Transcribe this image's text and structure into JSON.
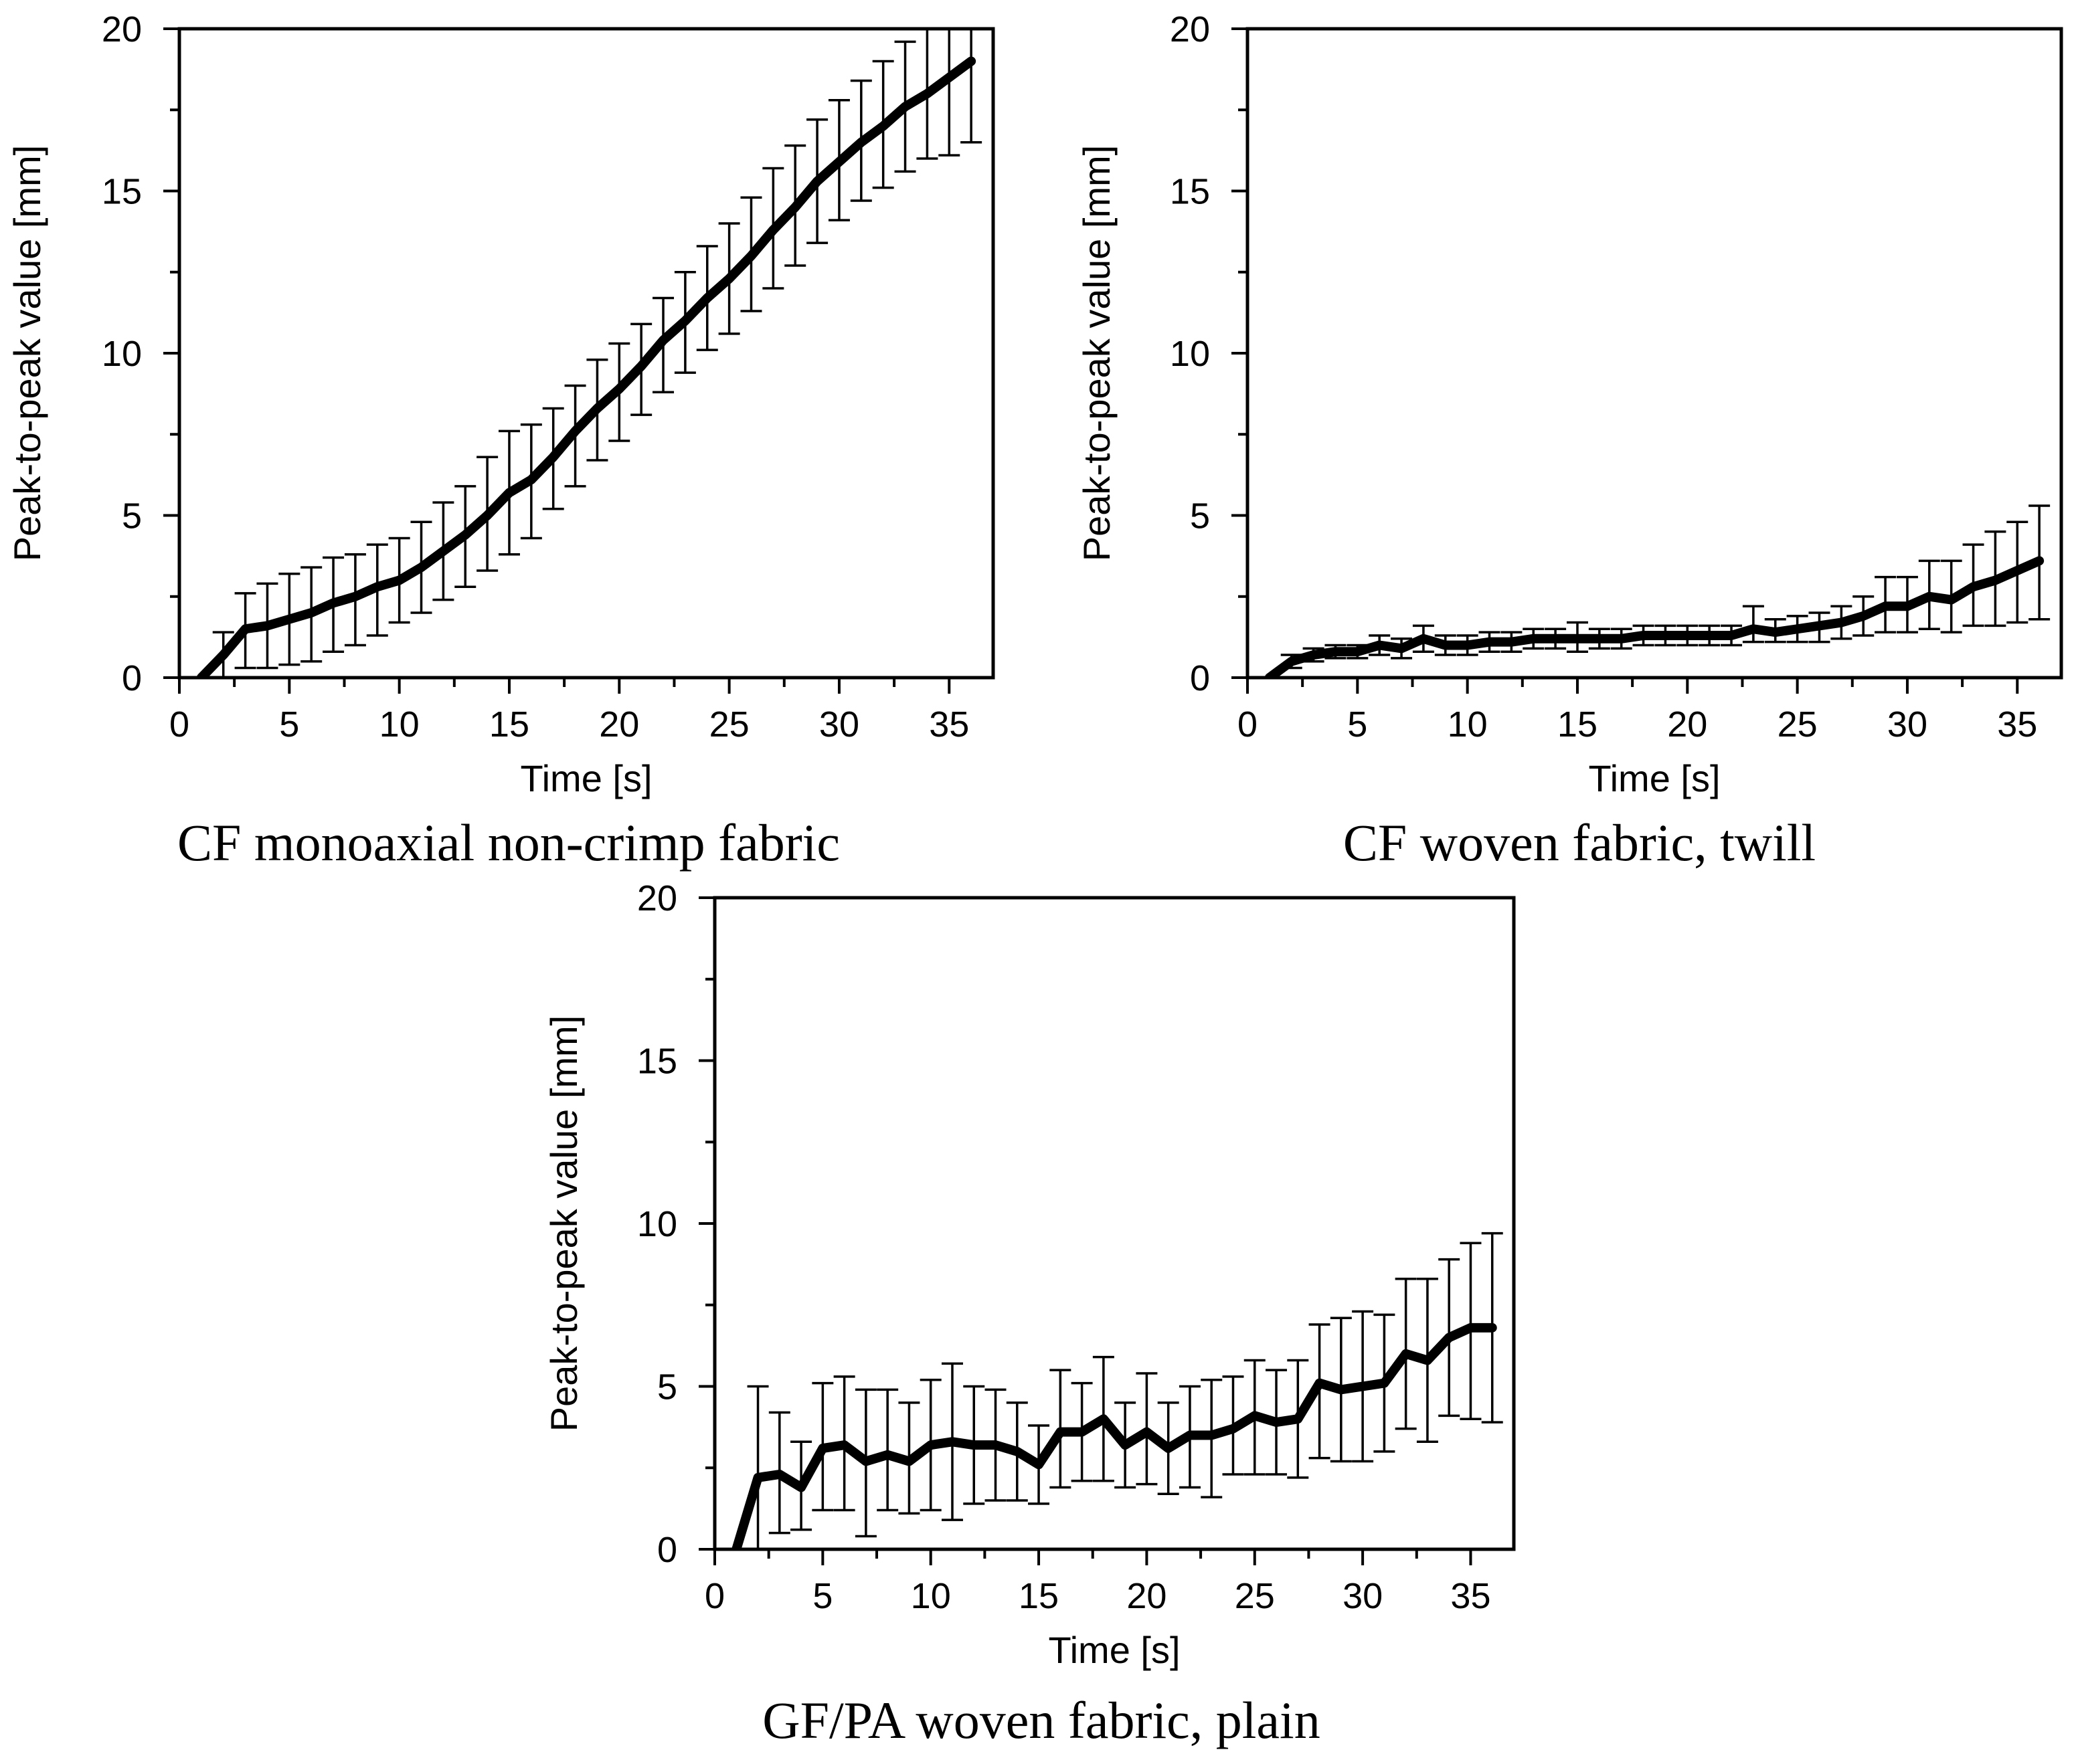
{
  "chart_data": [
    {
      "type": "line",
      "caption": "CF monoaxial non-crimp fabric",
      "xlabel": "Time [s]",
      "ylabel": "Peak-to-peak value [mm]",
      "xlim": [
        0,
        37
      ],
      "ylim": [
        0,
        20
      ],
      "xticks": [
        0,
        5,
        10,
        15,
        20,
        25,
        30,
        35
      ],
      "yticks": [
        0,
        5,
        10,
        15,
        20
      ],
      "grid": false,
      "series": [
        {
          "name": "CF monoaxial non-crimp fabric",
          "x": [
            1,
            2,
            3,
            4,
            5,
            6,
            7,
            8,
            9,
            10,
            11,
            12,
            13,
            14,
            15,
            16,
            17,
            18,
            19,
            20,
            21,
            22,
            23,
            24,
            25,
            26,
            27,
            28,
            29,
            30,
            31,
            32,
            33,
            34,
            35,
            36
          ],
          "y": [
            0,
            0.7,
            1.5,
            1.6,
            1.8,
            2.0,
            2.3,
            2.5,
            2.8,
            3.0,
            3.4,
            3.9,
            4.4,
            5.0,
            5.7,
            6.1,
            6.8,
            7.6,
            8.3,
            8.9,
            9.6,
            10.4,
            11.0,
            11.7,
            12.3,
            13.0,
            13.8,
            14.5,
            15.3,
            15.9,
            16.5,
            17.0,
            17.6,
            18.0,
            18.5,
            19.0
          ],
          "err_low": [
            0,
            0.7,
            1.2,
            1.3,
            1.4,
            1.5,
            1.5,
            1.5,
            1.5,
            1.3,
            1.4,
            1.5,
            1.6,
            1.7,
            1.9,
            1.8,
            1.6,
            1.7,
            1.6,
            1.6,
            1.5,
            1.6,
            1.6,
            1.6,
            1.7,
            1.7,
            1.8,
            1.8,
            1.9,
            1.8,
            1.8,
            1.9,
            2.0,
            2.0,
            2.4,
            2.5
          ],
          "err_high": [
            0,
            0.7,
            1.1,
            1.3,
            1.4,
            1.4,
            1.4,
            1.3,
            1.3,
            1.3,
            1.4,
            1.5,
            1.5,
            1.8,
            1.9,
            1.7,
            1.5,
            1.4,
            1.5,
            1.4,
            1.3,
            1.3,
            1.5,
            1.6,
            1.7,
            1.8,
            1.9,
            1.9,
            1.9,
            1.9,
            1.9,
            2.0,
            2.0,
            2.2,
            2.4,
            2.5
          ]
        }
      ]
    },
    {
      "type": "line",
      "caption": "CF woven fabric, twill",
      "xlabel": "Time [s]",
      "ylabel": "Peak-to-peak value [mm]",
      "xlim": [
        0,
        37
      ],
      "ylim": [
        0,
        20
      ],
      "xticks": [
        0,
        5,
        10,
        15,
        20,
        25,
        30,
        35
      ],
      "yticks": [
        0,
        5,
        10,
        15,
        20
      ],
      "grid": false,
      "series": [
        {
          "name": "CF woven fabric, twill",
          "x": [
            1,
            2,
            3,
            4,
            5,
            6,
            7,
            8,
            9,
            10,
            11,
            12,
            13,
            14,
            15,
            16,
            17,
            18,
            19,
            20,
            21,
            22,
            23,
            24,
            25,
            26,
            27,
            28,
            29,
            30,
            31,
            32,
            33,
            34,
            35,
            36
          ],
          "y": [
            0,
            0.5,
            0.7,
            0.8,
            0.8,
            1.0,
            0.9,
            1.2,
            1.0,
            1.0,
            1.1,
            1.1,
            1.2,
            1.2,
            1.2,
            1.2,
            1.2,
            1.3,
            1.3,
            1.3,
            1.3,
            1.3,
            1.5,
            1.4,
            1.5,
            1.6,
            1.7,
            1.9,
            2.2,
            2.2,
            2.5,
            2.4,
            2.8,
            3.0,
            3.3,
            3.6
          ],
          "err_low": [
            0,
            0.2,
            0.2,
            0.2,
            0.2,
            0.3,
            0.3,
            0.4,
            0.3,
            0.3,
            0.3,
            0.3,
            0.3,
            0.3,
            0.4,
            0.3,
            0.3,
            0.3,
            0.3,
            0.3,
            0.3,
            0.3,
            0.4,
            0.3,
            0.4,
            0.5,
            0.5,
            0.6,
            0.8,
            0.8,
            1.0,
            1.0,
            1.2,
            1.4,
            1.6,
            1.8
          ],
          "err_high": [
            0,
            0.2,
            0.2,
            0.2,
            0.2,
            0.3,
            0.3,
            0.4,
            0.3,
            0.3,
            0.3,
            0.3,
            0.3,
            0.3,
            0.5,
            0.3,
            0.3,
            0.3,
            0.3,
            0.3,
            0.3,
            0.3,
            0.7,
            0.4,
            0.4,
            0.4,
            0.5,
            0.6,
            0.9,
            0.9,
            1.1,
            1.2,
            1.3,
            1.5,
            1.5,
            1.7
          ]
        }
      ]
    },
    {
      "type": "line",
      "caption": "GF/PA woven fabric, plain",
      "xlabel": "Time [s]",
      "ylabel": "Peak-to-peak value [mm]",
      "xlim": [
        0,
        37
      ],
      "ylim": [
        0,
        20
      ],
      "xticks": [
        0,
        5,
        10,
        15,
        20,
        25,
        30,
        35
      ],
      "yticks": [
        0,
        5,
        10,
        15,
        20
      ],
      "grid": false,
      "series": [
        {
          "name": "GF/PA woven fabric, plain",
          "x": [
            1,
            2,
            3,
            4,
            5,
            6,
            7,
            8,
            9,
            10,
            11,
            12,
            13,
            14,
            15,
            16,
            17,
            18,
            19,
            20,
            21,
            22,
            23,
            24,
            25,
            26,
            27,
            28,
            29,
            30,
            31,
            32,
            33,
            34,
            35,
            36
          ],
          "y": [
            0,
            2.2,
            2.3,
            1.9,
            3.1,
            3.2,
            2.7,
            2.9,
            2.7,
            3.2,
            3.3,
            3.2,
            3.2,
            3.0,
            2.6,
            3.6,
            3.6,
            4.0,
            3.2,
            3.6,
            3.1,
            3.5,
            3.5,
            3.7,
            4.1,
            3.9,
            4.0,
            5.1,
            4.9,
            5.0,
            5.1,
            6.0,
            5.8,
            6.5,
            6.8,
            6.8
          ],
          "err_low": [
            0,
            2.2,
            1.8,
            1.3,
            1.9,
            2.0,
            2.3,
            1.7,
            1.6,
            2.0,
            2.4,
            1.8,
            1.7,
            1.5,
            1.2,
            1.7,
            1.5,
            1.9,
            1.3,
            1.6,
            1.4,
            1.6,
            1.9,
            1.4,
            1.8,
            1.6,
            1.8,
            2.3,
            2.2,
            2.3,
            2.1,
            2.3,
            2.5,
            2.4,
            2.8,
            2.9
          ],
          "err_high": [
            0,
            2.8,
            1.9,
            1.4,
            2.0,
            2.1,
            2.2,
            2.0,
            1.8,
            2.0,
            2.4,
            1.8,
            1.7,
            1.5,
            1.2,
            1.9,
            1.5,
            1.9,
            1.3,
            1.8,
            1.4,
            1.5,
            1.7,
            1.6,
            1.7,
            1.6,
            1.8,
            1.8,
            2.2,
            2.3,
            2.1,
            2.3,
            2.5,
            2.4,
            2.6,
            2.9
          ]
        }
      ]
    }
  ]
}
